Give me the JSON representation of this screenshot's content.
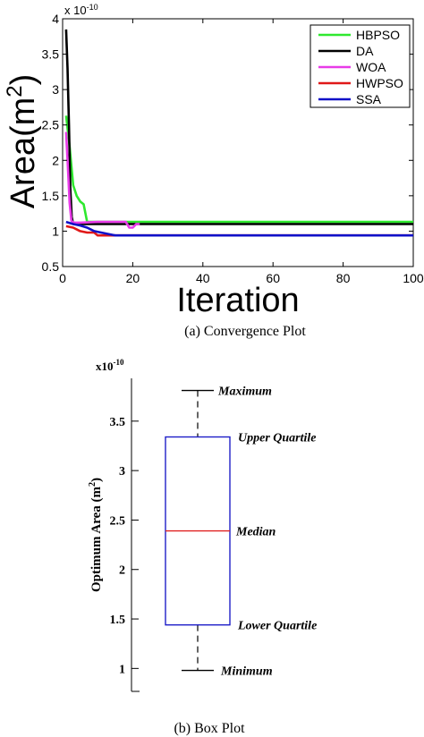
{
  "chart_data": [
    {
      "type": "line",
      "exponent_label": "x 10",
      "exponent_power": "-10",
      "xlabel": "Iteration",
      "ylabel": "Area(m",
      "ylabel_sup": "2",
      "ylabel_close": ")",
      "xlim": [
        0,
        100
      ],
      "ylim": [
        0.5,
        4
      ],
      "xticks": [
        0,
        20,
        40,
        60,
        80,
        100
      ],
      "xtick_labels": [
        "0",
        "20",
        "40",
        "60",
        "80",
        "100"
      ],
      "yticks": [
        0.5,
        1,
        1.5,
        2,
        2.5,
        3,
        3.5,
        4
      ],
      "ytick_labels": [
        "0.5",
        "1",
        "1.5",
        "2",
        "2.5",
        "3",
        "3.5",
        "4"
      ],
      "legend_position": "top-right",
      "caption": "(a)  Convergence Plot",
      "series": [
        {
          "name": "HBPSO",
          "color": "#2ee82e",
          "x": [
            1,
            2,
            3,
            4,
            5,
            6,
            7,
            10,
            15,
            20,
            22,
            100
          ],
          "y": [
            2.63,
            2.2,
            1.65,
            1.5,
            1.42,
            1.38,
            1.13,
            1.13,
            1.13,
            1.13,
            1.13,
            1.13
          ]
        },
        {
          "name": "DA",
          "color": "#000000",
          "x": [
            1,
            1.4,
            1.8,
            2.2,
            2.6,
            3,
            4,
            10,
            12,
            20,
            22,
            100
          ],
          "y": [
            3.85,
            3.3,
            2.5,
            1.6,
            1.2,
            1.1,
            1.1,
            1.1,
            1.1,
            1.1,
            1.1,
            1.1
          ]
        },
        {
          "name": "WOA",
          "color": "#e83be8",
          "x": [
            1,
            1.5,
            2,
            2.5,
            3,
            5,
            10,
            15,
            18,
            19,
            20,
            21,
            22
          ],
          "y": [
            2.4,
            1.9,
            1.4,
            1.15,
            1.12,
            1.12,
            1.13,
            1.13,
            1.13,
            1.05,
            1.05,
            1.1,
            1.1
          ]
        },
        {
          "name": "HWPSO",
          "color": "#e01818",
          "x": [
            1,
            3,
            5,
            7,
            9,
            10,
            12,
            14,
            100
          ],
          "y": [
            1.07,
            1.05,
            1.0,
            0.98,
            0.98,
            0.94,
            0.94,
            0.94,
            0.94
          ]
        },
        {
          "name": "SSA",
          "color": "#1010c8",
          "x": [
            1,
            3,
            5,
            7,
            9,
            11,
            13,
            15,
            100
          ],
          "y": [
            1.13,
            1.1,
            1.08,
            1.05,
            1.0,
            0.98,
            0.96,
            0.94,
            0.94
          ]
        }
      ]
    },
    {
      "type": "box",
      "exponent_label": "x10",
      "exponent_power": "-10",
      "ylabel": "Optimum Area (m",
      "ylabel_sup": "2",
      "ylabel_close": ")",
      "ylim": [
        0.75,
        4.05
      ],
      "yticks": [
        1,
        1.5,
        2,
        2.5,
        3,
        3.5
      ],
      "ytick_labels": [
        "1",
        "1.5",
        "2",
        "2.5",
        "3",
        "3.5"
      ],
      "minimum": 0.98,
      "lower_quartile": 1.44,
      "median": 2.39,
      "upper_quartile": 3.34,
      "maximum": 3.81,
      "annotations": {
        "maximum": "Maximum",
        "upper_quartile": "Upper Quartile",
        "median": "Median",
        "lower_quartile": "Lower Quartile",
        "minimum": "Minimum"
      },
      "box_color": "#1e1ec8",
      "median_color": "#e02020",
      "caption": "(b) Box Plot"
    }
  ]
}
